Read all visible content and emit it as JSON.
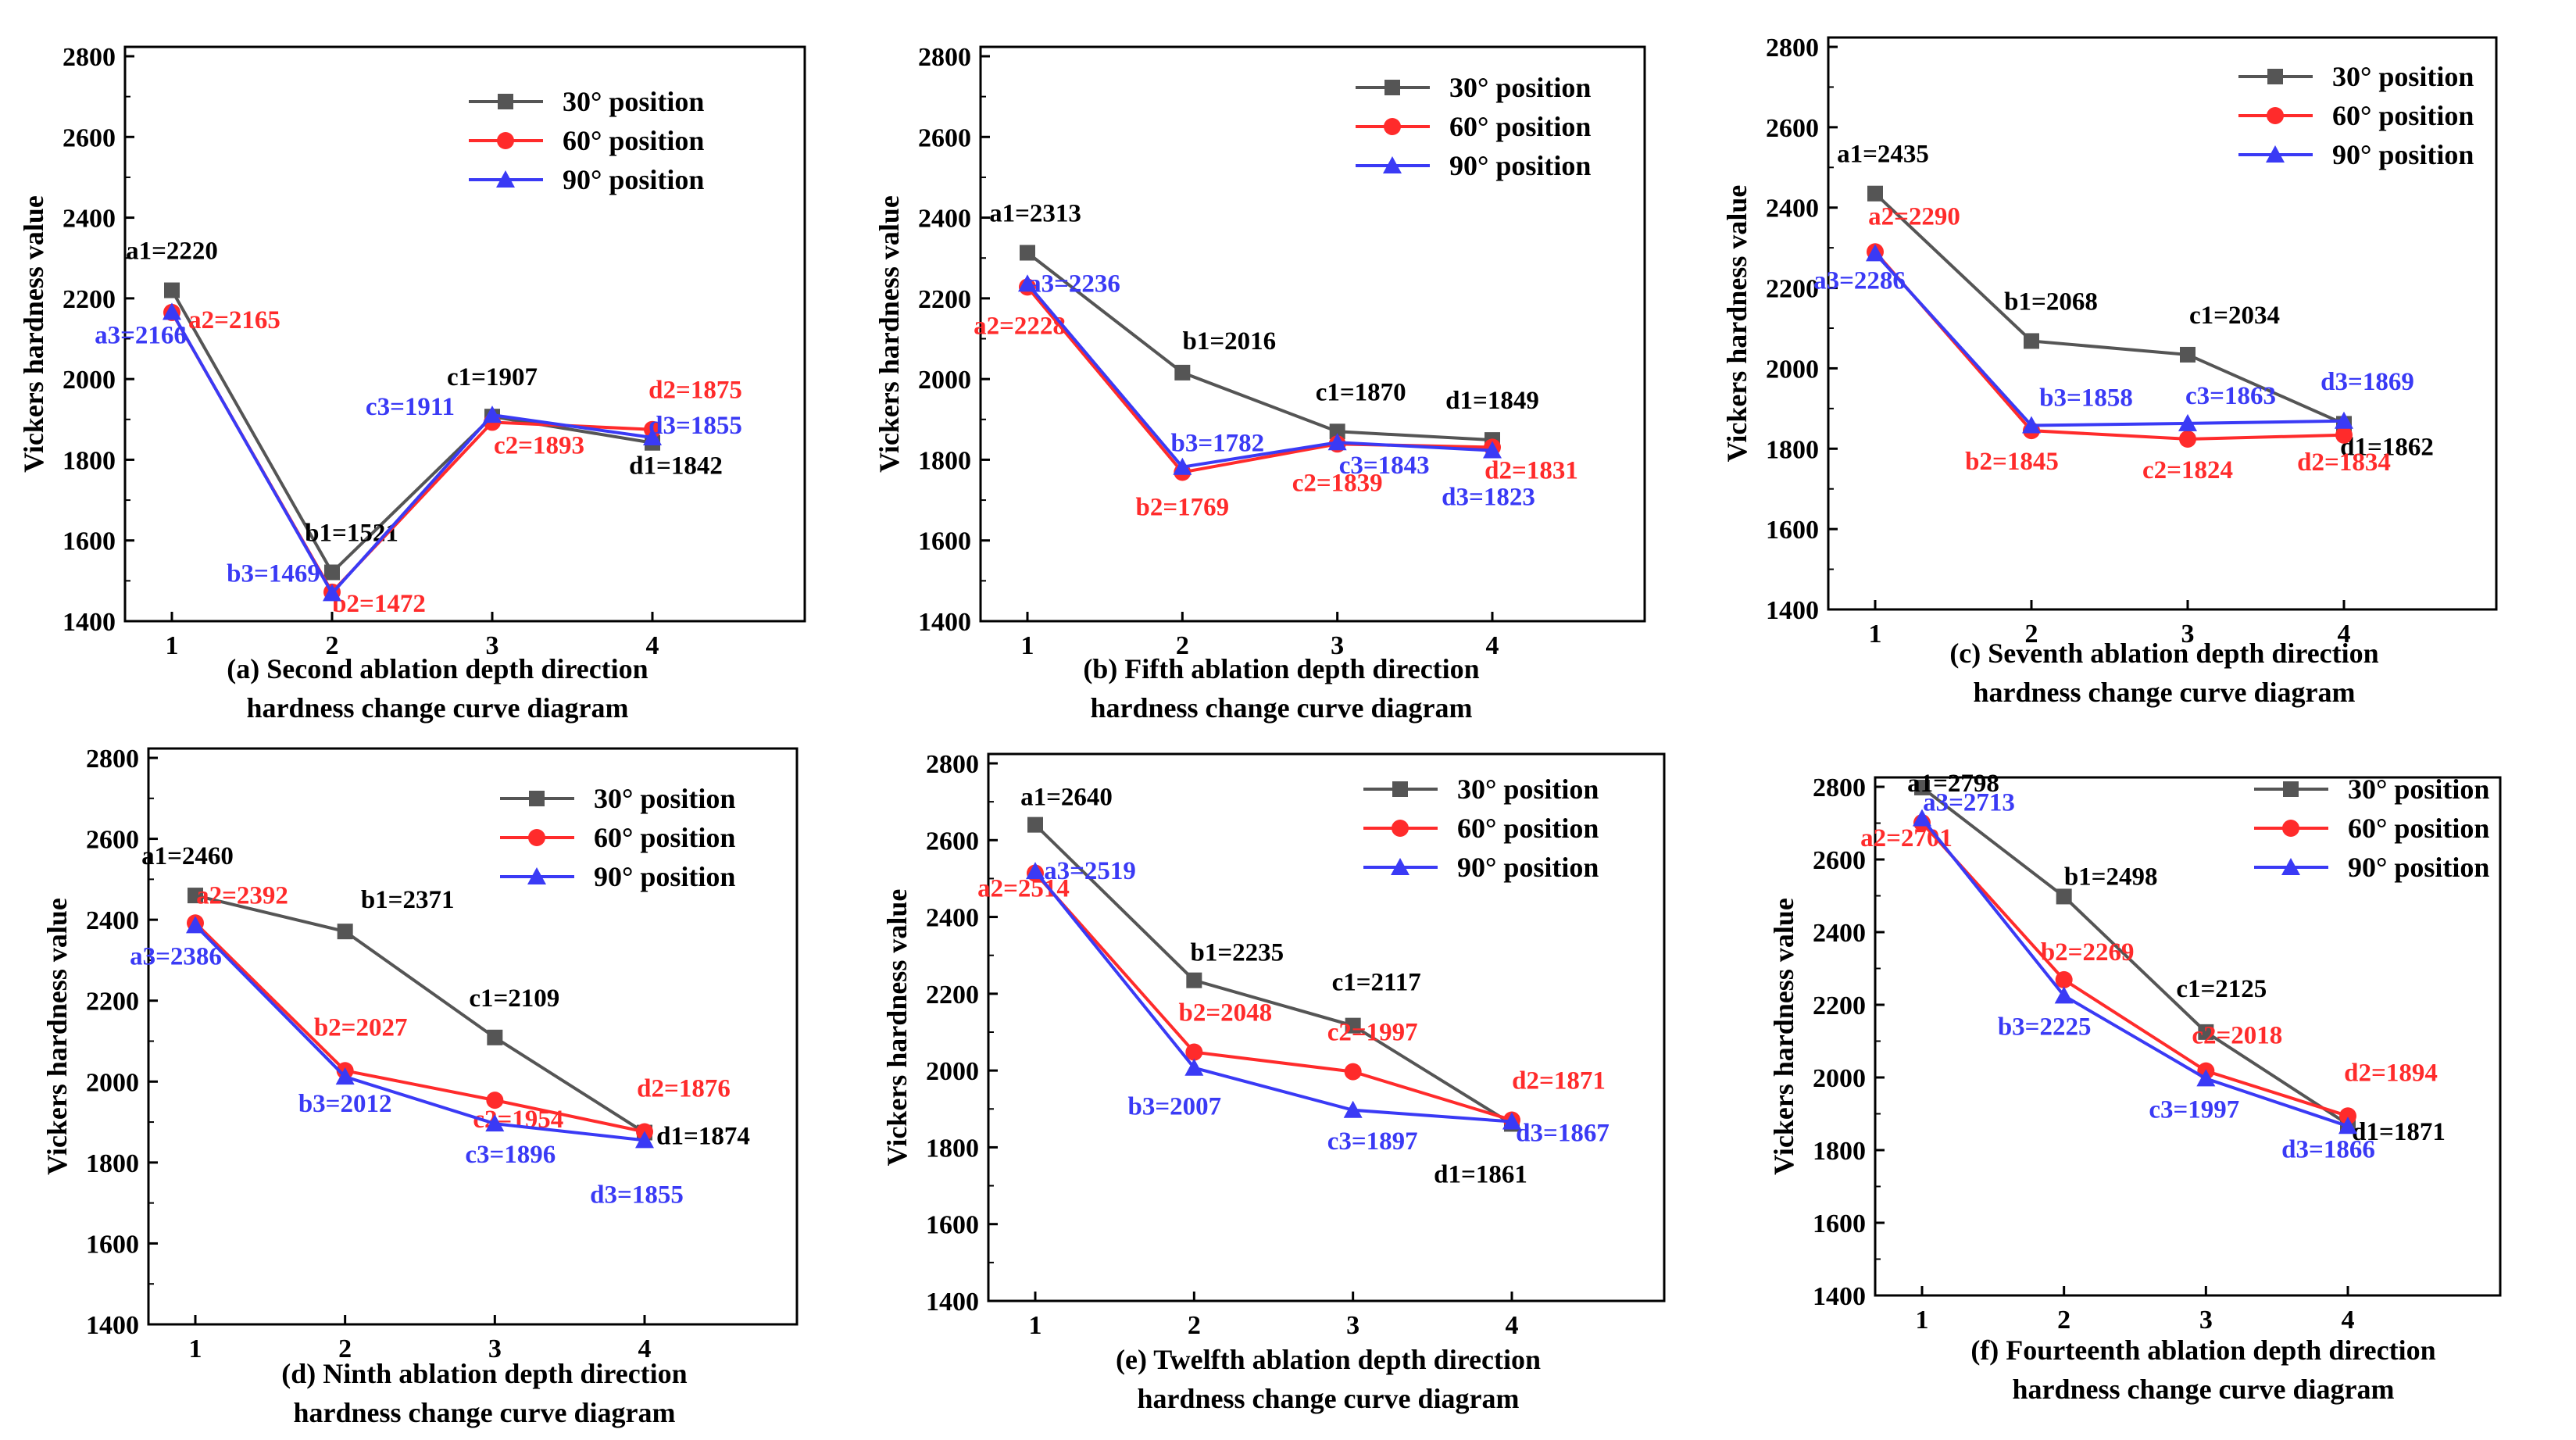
{
  "chart_data": [
    {
      "type": "line",
      "panel": "a",
      "caption_line1": "(a)  Second ablation depth direction",
      "caption_line2": "hardness change curve diagram",
      "ylabel": "Vickers hardness value",
      "ylim": [
        1400,
        2800
      ],
      "yticks": [
        1400,
        1600,
        1800,
        2000,
        2200,
        2400,
        2600,
        2800
      ],
      "x": [
        1,
        2,
        3,
        4
      ],
      "series": [
        {
          "name": "30° position",
          "color": "#555555",
          "marker": "square",
          "values": [
            2220,
            1521,
            1907,
            1842
          ],
          "labels": [
            "a1=2220",
            "b1=1521",
            "c1=1907",
            "d1=1842"
          ]
        },
        {
          "name": "60° position",
          "color": "#ff2b2b",
          "marker": "circle",
          "values": [
            2165,
            1472,
            1893,
            1875
          ],
          "labels": [
            "a2=2165",
            "b2=1472",
            "c2=1893",
            "d2=1875"
          ]
        },
        {
          "name": "90° position",
          "color": "#3a3af5",
          "marker": "triangle",
          "values": [
            2166,
            1469,
            1911,
            1855
          ],
          "labels": [
            "a3=2166",
            "b3=1469",
            "c3=1911",
            "d3=1855"
          ]
        }
      ]
    },
    {
      "type": "line",
      "panel": "b",
      "caption_line1": "(b)  Fifth ablation depth direction",
      "caption_line2": "hardness change curve diagram",
      "ylabel": "Vickers hardness value",
      "ylim": [
        1400,
        2800
      ],
      "yticks": [
        1400,
        1600,
        1800,
        2000,
        2200,
        2400,
        2600,
        2800
      ],
      "x": [
        1,
        2,
        3,
        4
      ],
      "series": [
        {
          "name": "30° position",
          "color": "#555555",
          "marker": "square",
          "values": [
            2313,
            2016,
            1870,
            1849
          ],
          "labels": [
            "a1=2313",
            "b1=2016",
            "c1=1870",
            "d1=1849"
          ]
        },
        {
          "name": "60° position",
          "color": "#ff2b2b",
          "marker": "circle",
          "values": [
            2228,
            1769,
            1839,
            1831
          ],
          "labels": [
            "a2=2228",
            "b2=1769",
            "c2=1839",
            "d2=1831"
          ]
        },
        {
          "name": "90° position",
          "color": "#3a3af5",
          "marker": "triangle",
          "values": [
            2236,
            1782,
            1843,
            1823
          ],
          "labels": [
            "a3=2236",
            "b3=1782",
            "c3=1843",
            "d3=1823"
          ]
        }
      ]
    },
    {
      "type": "line",
      "panel": "c",
      "caption_line1": "(c)  Seventh ablation depth direction",
      "caption_line2": "hardness change curve diagram",
      "ylabel": "Vickers hardness value",
      "ylim": [
        1400,
        2800
      ],
      "yticks": [
        1400,
        1600,
        1800,
        2000,
        2200,
        2400,
        2600,
        2800
      ],
      "x": [
        1,
        2,
        3,
        4
      ],
      "series": [
        {
          "name": "30° position",
          "color": "#555555",
          "marker": "square",
          "values": [
            2435,
            2068,
            2034,
            1862
          ],
          "labels": [
            "a1=2435",
            "b1=2068",
            "c1=2034",
            "d1=1862"
          ]
        },
        {
          "name": "60° position",
          "color": "#ff2b2b",
          "marker": "circle",
          "values": [
            2290,
            1845,
            1824,
            1834
          ],
          "labels": [
            "a2=2290",
            "b2=1845",
            "c2=1824",
            "d2=1834"
          ]
        },
        {
          "name": "90° position",
          "color": "#3a3af5",
          "marker": "triangle",
          "values": [
            2286,
            1858,
            1863,
            1869
          ],
          "labels": [
            "a3=2286",
            "b3=1858",
            "c3=1863",
            "d3=1869"
          ]
        }
      ]
    },
    {
      "type": "line",
      "panel": "d",
      "caption_line1": "(d)  Ninth ablation depth direction",
      "caption_line2": "hardness change curve diagram",
      "ylabel": "Vickers hardness value",
      "ylim": [
        1400,
        2800
      ],
      "yticks": [
        1400,
        1600,
        1800,
        2000,
        2200,
        2400,
        2600,
        2800
      ],
      "x": [
        1,
        2,
        3,
        4
      ],
      "series": [
        {
          "name": "30° position",
          "color": "#555555",
          "marker": "square",
          "values": [
            2460,
            2371,
            2109,
            1874
          ],
          "labels": [
            "a1=2460",
            "b1=2371",
            "c1=2109",
            "d1=1874"
          ]
        },
        {
          "name": "60° position",
          "color": "#ff2b2b",
          "marker": "circle",
          "values": [
            2392,
            2027,
            1954,
            1876
          ],
          "labels": [
            "a2=2392",
            "b2=2027",
            "c2=1954",
            "d2=1876"
          ]
        },
        {
          "name": "90° position",
          "color": "#3a3af5",
          "marker": "triangle",
          "values": [
            2386,
            2012,
            1896,
            1855
          ],
          "labels": [
            "a3=2386",
            "b3=2012",
            "c3=1896",
            "d3=1855"
          ]
        }
      ]
    },
    {
      "type": "line",
      "panel": "e",
      "caption_line1": "(e)  Twelfth ablation depth direction",
      "caption_line2": "hardness change curve diagram",
      "ylabel": "Vickers hardness value",
      "ylim": [
        1400,
        2800
      ],
      "yticks": [
        1400,
        1600,
        1800,
        2000,
        2200,
        2400,
        2600,
        2800
      ],
      "x": [
        1,
        2,
        3,
        4
      ],
      "series": [
        {
          "name": "30° position",
          "color": "#555555",
          "marker": "square",
          "values": [
            2640,
            2235,
            2117,
            1861
          ],
          "labels": [
            "a1=2640",
            "b1=2235",
            "c1=2117",
            "d1=1861"
          ]
        },
        {
          "name": "60° position",
          "color": "#ff2b2b",
          "marker": "circle",
          "values": [
            2514,
            2048,
            1997,
            1871
          ],
          "labels": [
            "a2=2514",
            "b2=2048",
            "c2=1997",
            "d2=1871"
          ]
        },
        {
          "name": "90° position",
          "color": "#3a3af5",
          "marker": "triangle",
          "values": [
            2519,
            2007,
            1897,
            1867
          ],
          "labels": [
            "a3=2519",
            "b3=2007",
            "c3=1897",
            "d3=1867"
          ]
        }
      ]
    },
    {
      "type": "line",
      "panel": "f",
      "caption_line1": "(f)  Fourteenth ablation depth direction",
      "caption_line2": "hardness change curve diagram",
      "ylabel": "Vickers hardness value",
      "ylim": [
        1400,
        2800
      ],
      "yticks": [
        1400,
        1600,
        1800,
        2000,
        2200,
        2400,
        2600,
        2800
      ],
      "x": [
        1,
        2,
        3,
        4
      ],
      "series": [
        {
          "name": "30° position",
          "color": "#555555",
          "marker": "square",
          "values": [
            2798,
            2498,
            2125,
            1871
          ],
          "labels": [
            "a1=2798",
            "b1=2498",
            "c1=2125",
            "d1=1871"
          ]
        },
        {
          "name": "60° position",
          "color": "#ff2b2b",
          "marker": "circle",
          "values": [
            2701,
            2269,
            2018,
            1894
          ],
          "labels": [
            "a2=2701",
            "b2=2269",
            "c2=2018",
            "d2=1894"
          ]
        },
        {
          "name": "90° position",
          "color": "#3a3af5",
          "marker": "triangle",
          "values": [
            2713,
            2225,
            1997,
            1866
          ],
          "labels": [
            "a3=2713",
            "b3=2225",
            "c3=1997",
            "d3=1866"
          ]
        }
      ]
    }
  ]
}
